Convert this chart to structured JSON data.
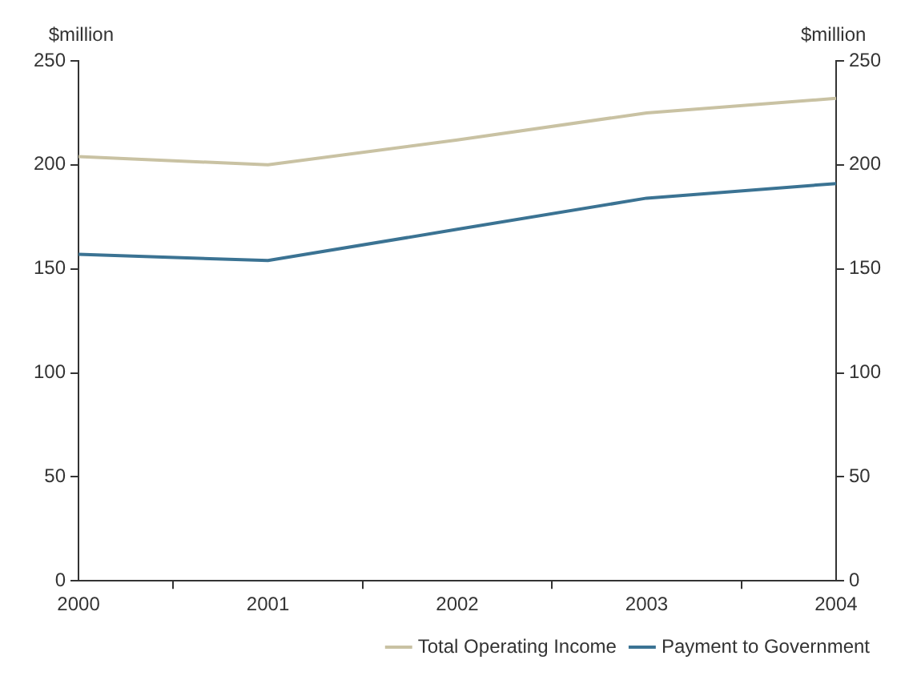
{
  "chart_data": {
    "type": "line",
    "categories": [
      "2000",
      "2001",
      "2002",
      "2003",
      "2004"
    ],
    "series": [
      {
        "name": "Total Operating Income",
        "color": "#c9c2a3",
        "values": [
          204,
          200,
          212,
          225,
          232
        ]
      },
      {
        "name": "Payment to Government",
        "color": "#3b7393",
        "values": [
          157,
          154,
          169,
          184,
          191
        ]
      }
    ],
    "ylabel": "$million",
    "y2label": "$million",
    "ylim": [
      0,
      250
    ],
    "yticks": [
      0,
      50,
      100,
      150,
      200,
      250
    ],
    "y2lim": [
      0,
      250
    ],
    "y2ticks": [
      0,
      50,
      100,
      150,
      200,
      250
    ],
    "grid": false,
    "legend": "bottom right",
    "marker": "none",
    "line_style": "solid"
  }
}
